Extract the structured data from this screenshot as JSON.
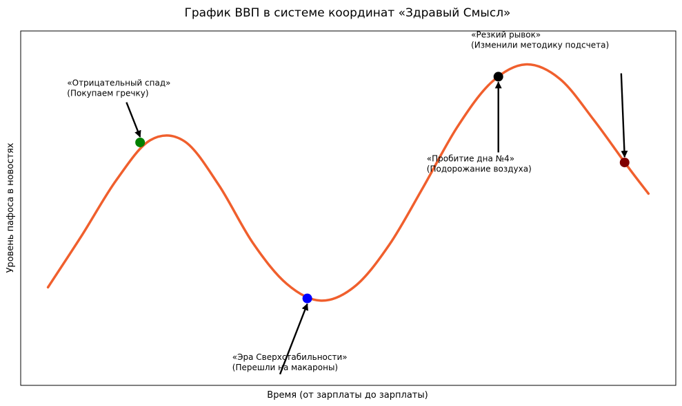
{
  "chart_data": {
    "type": "line",
    "title": "График ВВП в системе координат «Здравый Смысл»",
    "xlabel": "Время (от зарплаты до зарплаты)",
    "ylabel": "Уровень пафоса в новостях",
    "xlim": [
      -0.4,
      9.2
    ],
    "ylim": [
      -1.38,
      1.8
    ],
    "ticks": "none",
    "grid": false,
    "legend": "none",
    "series": [
      {
        "color": "#f05f2d",
        "x": [
          0,
          0.5,
          1,
          1.5,
          2,
          2.5,
          3,
          3.5,
          4,
          4.5,
          5,
          5.5,
          6,
          6.5,
          7,
          7.5,
          8,
          8.5,
          8.8
        ],
        "y": [
          -0.5,
          -0.03,
          0.46,
          0.82,
          0.81,
          0.42,
          -0.1,
          -0.47,
          -0.62,
          -0.49,
          -0.12,
          0.4,
          0.94,
          1.34,
          1.5,
          1.37,
          1.0,
          0.58,
          0.34
        ]
      }
    ],
    "points": [
      {
        "x": 1.35,
        "y": 0.8,
        "color": "#008000"
      },
      {
        "x": 3.8,
        "y": -0.6,
        "color": "#0000ff"
      },
      {
        "x": 6.6,
        "y": 1.39,
        "color": "#000000"
      },
      {
        "x": 8.45,
        "y": 0.62,
        "color": "#800000"
      }
    ],
    "annotations": [
      {
        "lines": [
          "«Отрицательный спад»",
          "(Покупаем гречку)"
        ],
        "text_x": 0.28,
        "text_y": 1.31,
        "arrow_from": [
          1.15,
          1.16
        ],
        "arrow_to": [
          1.35,
          0.8
        ]
      },
      {
        "lines": [
          "«Эра Сверхстабильности»",
          "(Перешли на макароны)"
        ],
        "text_x": 2.7,
        "text_y": -1.15,
        "arrow_from": [
          3.4,
          -1.28
        ],
        "arrow_to": [
          3.8,
          -0.6
        ]
      },
      {
        "lines": [
          "«Пробитие дна №4»",
          "(Подорожание воздуха)"
        ],
        "text_x": 5.55,
        "text_y": 0.63,
        "arrow_from": [
          6.6,
          0.71
        ],
        "arrow_to": [
          6.6,
          1.39
        ]
      },
      {
        "lines": [
          "«Резкий рывок»",
          "(Изменили методику подсчета)"
        ],
        "text_x": 6.2,
        "text_y": 1.74,
        "arrow_from": [
          8.4,
          1.42
        ],
        "arrow_to": [
          8.45,
          0.62
        ]
      }
    ]
  }
}
